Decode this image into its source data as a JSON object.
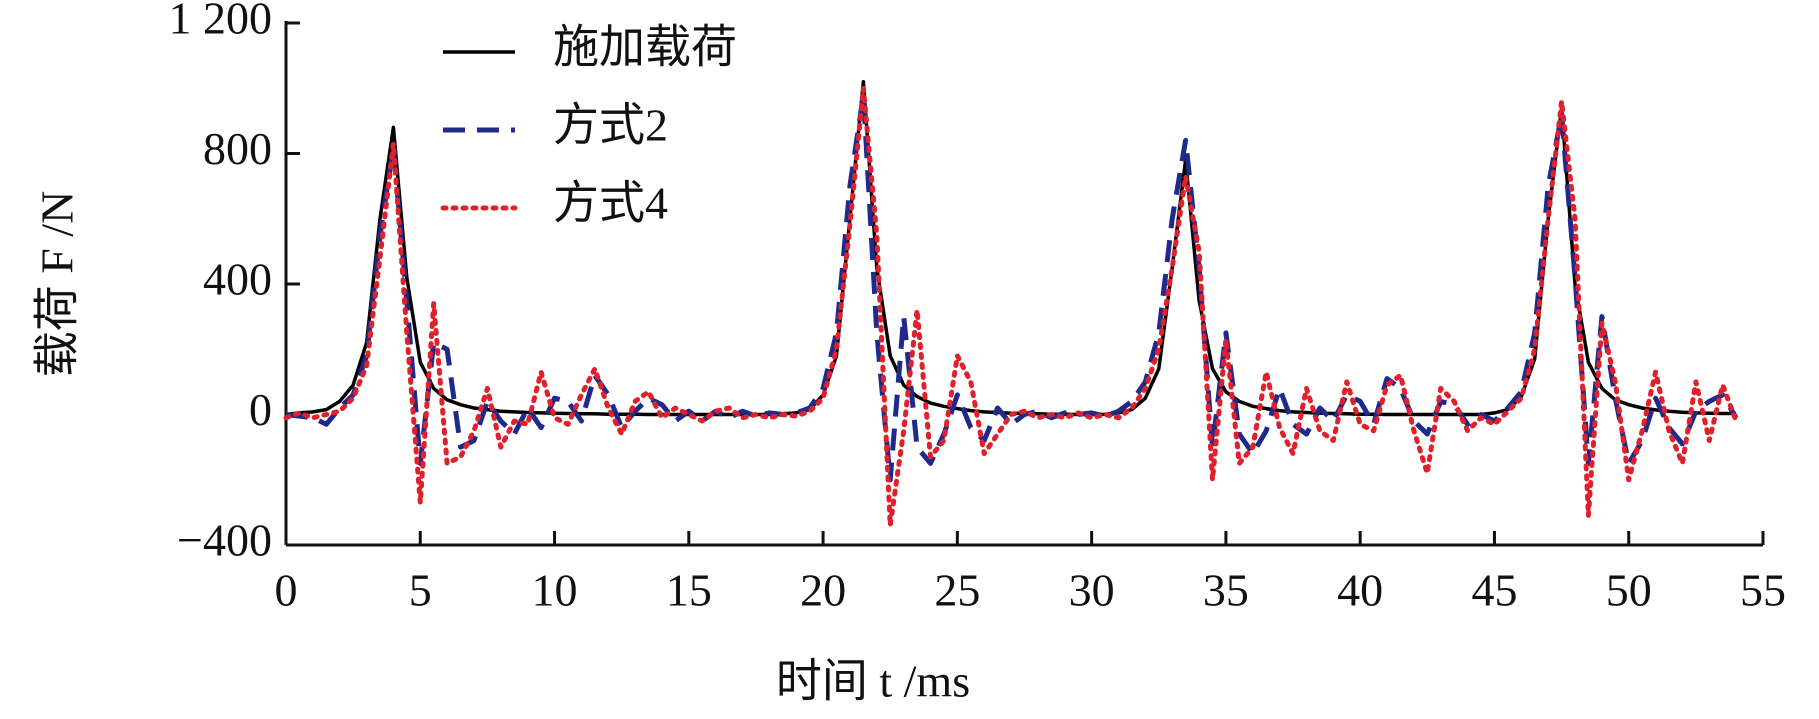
{
  "chart_data": {
    "type": "line",
    "x_label": "时间 t /ms",
    "y_label": "载荷 F /N",
    "x": [
      0,
      0.5,
      1,
      1.5,
      2,
      2.5,
      3,
      3.5,
      4,
      4.5,
      5,
      5.5,
      6,
      6.5,
      7,
      7.5,
      8,
      8.5,
      9,
      9.5,
      10,
      10.5,
      11,
      11.5,
      12,
      12.5,
      13,
      13.5,
      14,
      14.5,
      15,
      15.5,
      16,
      16.5,
      17,
      17.5,
      18,
      18.5,
      19,
      19.5,
      20,
      20.5,
      21,
      21.5,
      22,
      22.5,
      23,
      23.5,
      24,
      24.5,
      25,
      25.5,
      26,
      26.5,
      27,
      27.5,
      28,
      28.5,
      29,
      29.5,
      30,
      30.5,
      31,
      31.5,
      32,
      32.5,
      33,
      33.5,
      34,
      34.5,
      35,
      35.5,
      36,
      36.5,
      37,
      37.5,
      38,
      38.5,
      39,
      39.5,
      40,
      40.5,
      41,
      41.5,
      42,
      42.5,
      43,
      43.5,
      44,
      44.5,
      45,
      45.5,
      46,
      46.5,
      47,
      47.5,
      48,
      48.5,
      49,
      49.5,
      50,
      50.5,
      51,
      51.5,
      52,
      52.5,
      53,
      53.5,
      54
    ],
    "series": [
      {
        "name": "施加载荷",
        "color": "#000000",
        "dash": "solid",
        "values": [
          0,
          5,
          8,
          15,
          40,
          90,
          220,
          600,
          880,
          420,
          160,
          80,
          45,
          30,
          20,
          15,
          10,
          8,
          6,
          5,
          4,
          3,
          2,
          2,
          1,
          1,
          1,
          0,
          0,
          0,
          0,
          0,
          0,
          0,
          0,
          0,
          0,
          2,
          5,
          15,
          60,
          180,
          600,
          1020,
          450,
          180,
          90,
          55,
          35,
          25,
          18,
          12,
          8,
          6,
          4,
          3,
          2,
          1,
          1,
          0,
          0,
          1,
          5,
          15,
          50,
          140,
          450,
          780,
          350,
          140,
          70,
          40,
          25,
          18,
          12,
          8,
          6,
          4,
          3,
          2,
          1,
          1,
          0,
          0,
          0,
          0,
          0,
          0,
          0,
          0,
          5,
          15,
          55,
          170,
          600,
          940,
          400,
          160,
          80,
          45,
          30,
          20,
          14,
          10,
          7,
          5,
          4,
          3,
          3
        ]
      },
      {
        "name": "方式2",
        "color": "#1f2a8a",
        "dash": "dashed",
        "values": [
          0,
          -5,
          -10,
          -30,
          20,
          60,
          180,
          550,
          820,
          350,
          -150,
          220,
          200,
          -100,
          -80,
          40,
          -20,
          -60,
          20,
          -40,
          50,
          40,
          -20,
          120,
          60,
          -40,
          10,
          50,
          30,
          -20,
          10,
          -20,
          10,
          -10,
          10,
          -5,
          5,
          0,
          5,
          20,
          80,
          250,
          700,
          980,
          250,
          -200,
          300,
          -100,
          -150,
          -60,
          60,
          -40,
          -80,
          20,
          -30,
          0,
          10,
          -10,
          5,
          0,
          5,
          -5,
          10,
          40,
          100,
          250,
          600,
          840,
          450,
          -100,
          250,
          -60,
          -120,
          -50,
          80,
          -30,
          -60,
          20,
          -20,
          60,
          40,
          -30,
          110,
          80,
          -20,
          -60,
          40,
          30,
          -30,
          0,
          -20,
          20,
          70,
          250,
          700,
          920,
          420,
          -150,
          300,
          50,
          -150,
          -80,
          50,
          -40,
          -90,
          10,
          40,
          60,
          -10
        ]
      },
      {
        "name": "方式4",
        "color": "#e0202a",
        "dash": "dotted",
        "values": [
          -10,
          5,
          -10,
          0,
          10,
          50,
          150,
          480,
          830,
          250,
          -270,
          340,
          -150,
          -130,
          -50,
          80,
          -100,
          -20,
          -30,
          130,
          -10,
          -30,
          60,
          140,
          20,
          -60,
          40,
          70,
          -10,
          20,
          0,
          -20,
          10,
          20,
          -10,
          0,
          -10,
          0,
          -5,
          10,
          50,
          200,
          580,
          1000,
          550,
          -340,
          -50,
          320,
          -130,
          -80,
          180,
          100,
          -120,
          -60,
          0,
          10,
          -10,
          0,
          -10,
          5,
          -10,
          0,
          -10,
          20,
          80,
          200,
          450,
          730,
          500,
          -200,
          230,
          -150,
          -100,
          130,
          -40,
          -120,
          80,
          -50,
          -80,
          100,
          -30,
          -50,
          90,
          120,
          -50,
          -180,
          80,
          40,
          -50,
          -10,
          -30,
          10,
          50,
          200,
          600,
          960,
          600,
          -310,
          280,
          100,
          -200,
          -50,
          130,
          -50,
          -150,
          100,
          -80,
          90,
          -20
        ]
      }
    ],
    "xlim": [
      0,
      55
    ],
    "xticks": [
      0,
      5,
      10,
      15,
      20,
      25,
      30,
      35,
      40,
      45,
      50,
      55
    ],
    "ylim": [
      -400,
      1200
    ],
    "yticks": [
      {
        "value": -400,
        "label": "−400"
      },
      0,
      400,
      800,
      {
        "value": 1200,
        "label": "1 200"
      }
    ],
    "grid": false,
    "legend": "upper left"
  }
}
